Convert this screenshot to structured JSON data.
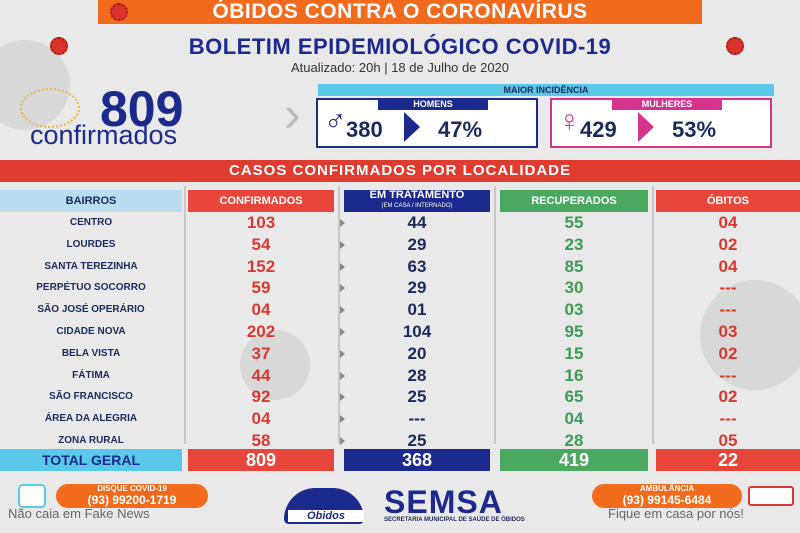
{
  "top_banner": "ÓBIDOS CONTRA O CORONAVÍRUS",
  "title": "BOLETIM EPIDEMIOLÓGICO COVID-19",
  "updated": "Atualizado: 20h  |  18 de Julho de 2020",
  "confirmed": {
    "number": "809",
    "label": "confirmados"
  },
  "incidence": {
    "title": "MAIOR INCIDÊNCIA",
    "men": {
      "label": "HOMENS",
      "count": "380",
      "percent": "47%"
    },
    "women": {
      "label": "MULHERES",
      "count": "429",
      "percent": "53%"
    }
  },
  "section_title": "CASOS CONFIRMADOS POR LOCALIDADE",
  "table": {
    "headers": [
      "BAIRROS",
      "CONFIRMADOS",
      "EM TRATAMENTO",
      "RECUPERADOS",
      "ÓBITOS"
    ],
    "treatment_sub": "(EM CASA / INTERNADO)",
    "rows": [
      [
        "CENTRO",
        "103",
        "44",
        "55",
        "04"
      ],
      [
        "LOURDES",
        "54",
        "29",
        "23",
        "02"
      ],
      [
        "SANTA TEREZINHA",
        "152",
        "63",
        "85",
        "04"
      ],
      [
        "PERPÉTUO SOCORRO",
        "59",
        "29",
        "30",
        "---"
      ],
      [
        "SÃO JOSÉ OPERÁRIO",
        "04",
        "01",
        "03",
        "---"
      ],
      [
        "CIDADE NOVA",
        "202",
        "104",
        "95",
        "03"
      ],
      [
        "BELA VISTA",
        "37",
        "20",
        "15",
        "02"
      ],
      [
        "FÁTIMA",
        "44",
        "28",
        "16",
        "---"
      ],
      [
        "SÃO FRANCISCO",
        "92",
        "25",
        "65",
        "02"
      ],
      [
        "ÁREA DA ALEGRIA",
        "04",
        "---",
        "04",
        "---"
      ],
      [
        "ZONA RURAL",
        "58",
        "25",
        "28",
        "05"
      ]
    ],
    "total": [
      "TOTAL GERAL",
      "809",
      "368",
      "419",
      "22"
    ]
  },
  "footer": {
    "disque_label": "DISQUE COVID-19",
    "disque_phone": "(93) 99200-1719",
    "fake_news": "Não caia em Fake News",
    "ambulance_label": "AMBULÂNCIA",
    "ambulance_phone": "(93) 99145-6484",
    "stay_home": "Fique em casa por nós!",
    "logo_city": "Óbidos",
    "logo_name": "SEMSA",
    "logo_sub": "SECRETARIA MUNICIPAL DE SAÚDE DE ÓBIDOS"
  },
  "colors": {
    "orange": "#f26a1b",
    "red": "#e03b2f",
    "navy": "#1b2a8c",
    "green": "#4aa860",
    "cyan": "#5ac8e8",
    "pink": "#d6338f"
  }
}
